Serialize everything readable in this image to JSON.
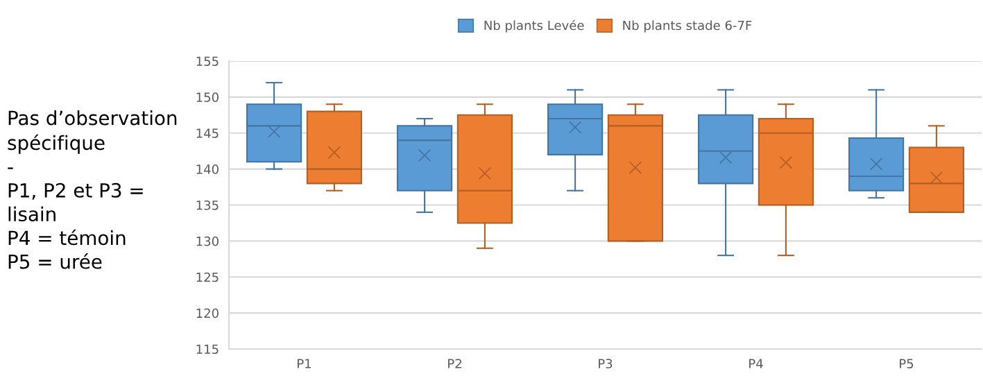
{
  "chart_data": {
    "type": "box",
    "categories": [
      "P1",
      "P2",
      "P3",
      "P4",
      "P5"
    ],
    "series": [
      {
        "name": "Nb plants Levée",
        "color": "#5b9bd5",
        "boxes": [
          {
            "low": 140,
            "q1": 141,
            "median": 146,
            "q3": 149,
            "high": 152,
            "mean": 145.2
          },
          {
            "low": 134,
            "q1": 137,
            "median": 144,
            "q3": 146,
            "high": 147,
            "mean": 141.9
          },
          {
            "low": 137,
            "q1": 142,
            "median": 147,
            "q3": 149,
            "high": 151,
            "mean": 145.8
          },
          {
            "low": 128,
            "q1": 138,
            "median": 142.5,
            "q3": 147.5,
            "high": 151,
            "mean": 141.6
          },
          {
            "low": 136,
            "q1": 137,
            "median": 139,
            "q3": 144.3,
            "high": 151,
            "mean": 140.7
          }
        ]
      },
      {
        "name": "Nb plants stade 6-7F",
        "color": "#ed7d31",
        "boxes": [
          {
            "low": 137,
            "q1": 138,
            "median": 140,
            "q3": 148,
            "high": 149,
            "mean": 142.3
          },
          {
            "low": 129,
            "q1": 132.5,
            "median": 137,
            "q3": 147.5,
            "high": 149,
            "mean": 139.4
          },
          {
            "low": 130,
            "q1": 130,
            "median": 146,
            "q3": 147.5,
            "high": 149,
            "mean": 140.2
          },
          {
            "low": 128,
            "q1": 135,
            "median": 145,
            "q3": 147,
            "high": 149,
            "mean": 140.9
          },
          {
            "low": 134,
            "q1": 134,
            "median": 138,
            "q3": 143,
            "high": 146,
            "mean": 138.8
          }
        ]
      }
    ],
    "ylim": [
      115,
      155
    ],
    "yticks": [
      115,
      120,
      125,
      130,
      135,
      140,
      145,
      150,
      155
    ],
    "grid": "y",
    "legend": "top",
    "annotations": [
      "Pas d’observation\nspécifique\n-\nP1, P2 et P3 =\nlisain\nP4 = témoin\nP5 = urée"
    ]
  }
}
